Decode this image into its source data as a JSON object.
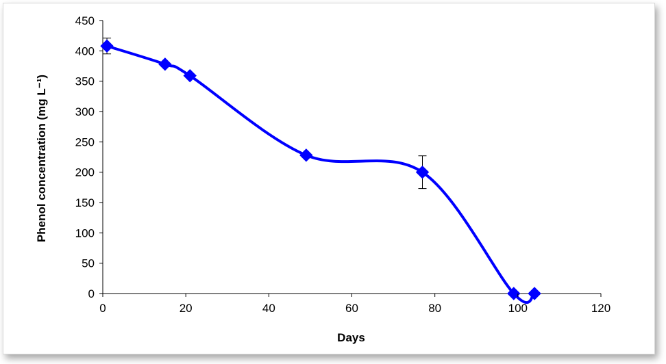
{
  "chart_data": {
    "type": "line",
    "xlabel": "Days",
    "ylabel": "Phenol concentration (mg L⁻¹)",
    "xlim": [
      0,
      120
    ],
    "ylim": [
      0,
      450
    ],
    "xticks": [
      0,
      20,
      40,
      60,
      80,
      100,
      120
    ],
    "yticks": [
      0,
      50,
      100,
      150,
      200,
      250,
      300,
      350,
      400,
      450
    ],
    "grid": false,
    "legend": "none",
    "series": [
      {
        "color": "#0000ff",
        "marker": "diamond",
        "smooth": true,
        "x": [
          1,
          15,
          21,
          49,
          77,
          99,
          104
        ],
        "y": [
          408,
          378,
          359,
          228,
          200,
          0,
          0
        ],
        "error": [
          13,
          0,
          0,
          0,
          27,
          0,
          0
        ]
      }
    ]
  }
}
